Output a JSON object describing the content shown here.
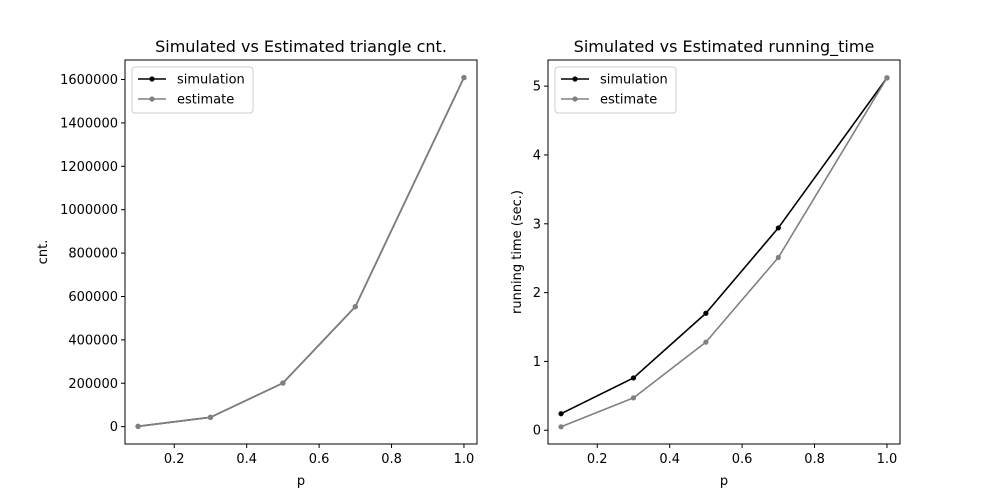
{
  "colors": {
    "simulation": "#000000",
    "estimate": "#808080",
    "axes": "#000000",
    "legend_border": "#cccccc"
  },
  "chart_data": [
    {
      "type": "line",
      "title": "Simulated vs Estimated triangle cnt.",
      "xlabel": "p",
      "ylabel": "cnt.",
      "x": [
        0.1,
        0.3,
        0.5,
        0.7,
        1.0
      ],
      "xlim": [
        0.064,
        1.036
      ],
      "ylim": [
        -80000,
        1690000
      ],
      "xticks": [
        0.2,
        0.4,
        0.6,
        0.8,
        1.0
      ],
      "xtick_labels": [
        "0.2",
        "0.4",
        "0.6",
        "0.8",
        "1.0"
      ],
      "yticks": [
        0,
        200000,
        400000,
        600000,
        800000,
        1000000,
        1200000,
        1400000,
        1600000
      ],
      "ytick_labels": [
        "0",
        "200000",
        "400000",
        "600000",
        "800000",
        "1000000",
        "1200000",
        "1400000",
        "1600000"
      ],
      "legend_position": "top-left",
      "grid": false,
      "series": [
        {
          "name": "simulation",
          "color_key": "simulation",
          "values": [
            1600,
            43000,
            201000,
            553000,
            1609000
          ]
        },
        {
          "name": "estimate",
          "color_key": "estimate",
          "values": [
            1600,
            43000,
            201000,
            553000,
            1609000
          ]
        }
      ]
    },
    {
      "type": "line",
      "title": "Simulated vs Estimated running_time",
      "xlabel": "p",
      "ylabel": "running time (sec.)",
      "x": [
        0.1,
        0.3,
        0.5,
        0.7,
        1.0
      ],
      "xlim": [
        0.064,
        1.036
      ],
      "ylim": [
        -0.2,
        5.38
      ],
      "xticks": [
        0.2,
        0.4,
        0.6,
        0.8,
        1.0
      ],
      "xtick_labels": [
        "0.2",
        "0.4",
        "0.6",
        "0.8",
        "1.0"
      ],
      "yticks": [
        0,
        1,
        2,
        3,
        4,
        5
      ],
      "ytick_labels": [
        "0",
        "1",
        "2",
        "3",
        "4",
        "5"
      ],
      "legend_position": "top-left",
      "grid": false,
      "series": [
        {
          "name": "simulation",
          "color_key": "simulation",
          "values": [
            0.24,
            0.76,
            1.7,
            2.94,
            5.12
          ]
        },
        {
          "name": "estimate",
          "color_key": "estimate",
          "values": [
            0.05,
            0.47,
            1.28,
            2.51,
            5.12
          ]
        }
      ]
    }
  ]
}
